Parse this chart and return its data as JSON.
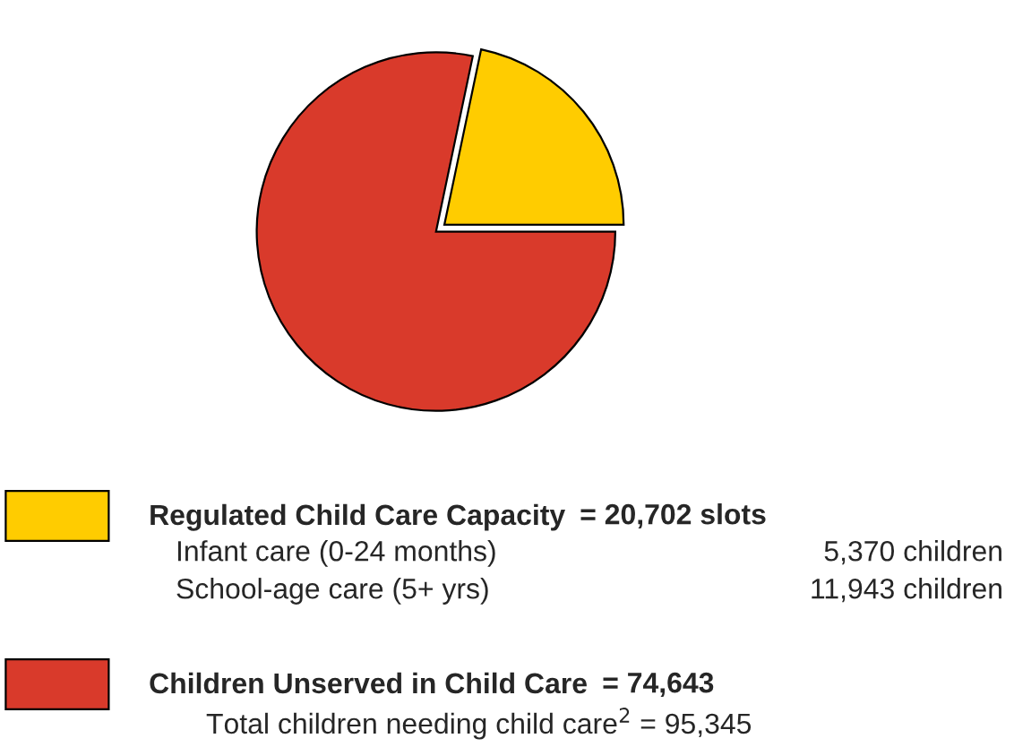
{
  "chart_data": {
    "type": "pie",
    "categories": [
      "Regulated Child Care Capacity",
      "Children Unserved in Child Care"
    ],
    "values": [
      20702,
      74643
    ],
    "colors": [
      "#ffcc00",
      "#d93a2b"
    ],
    "value_labels": [
      "= 20,702 slots",
      "= 74,643"
    ],
    "annotations": [
      "Infant care (0-24 months)",
      "5,370 children",
      "School-age care (5+ yrs)",
      "11,943 children",
      "Total children needing child care$^{2}$ = 95,345"
    ],
    "legend": "bottom"
  }
}
